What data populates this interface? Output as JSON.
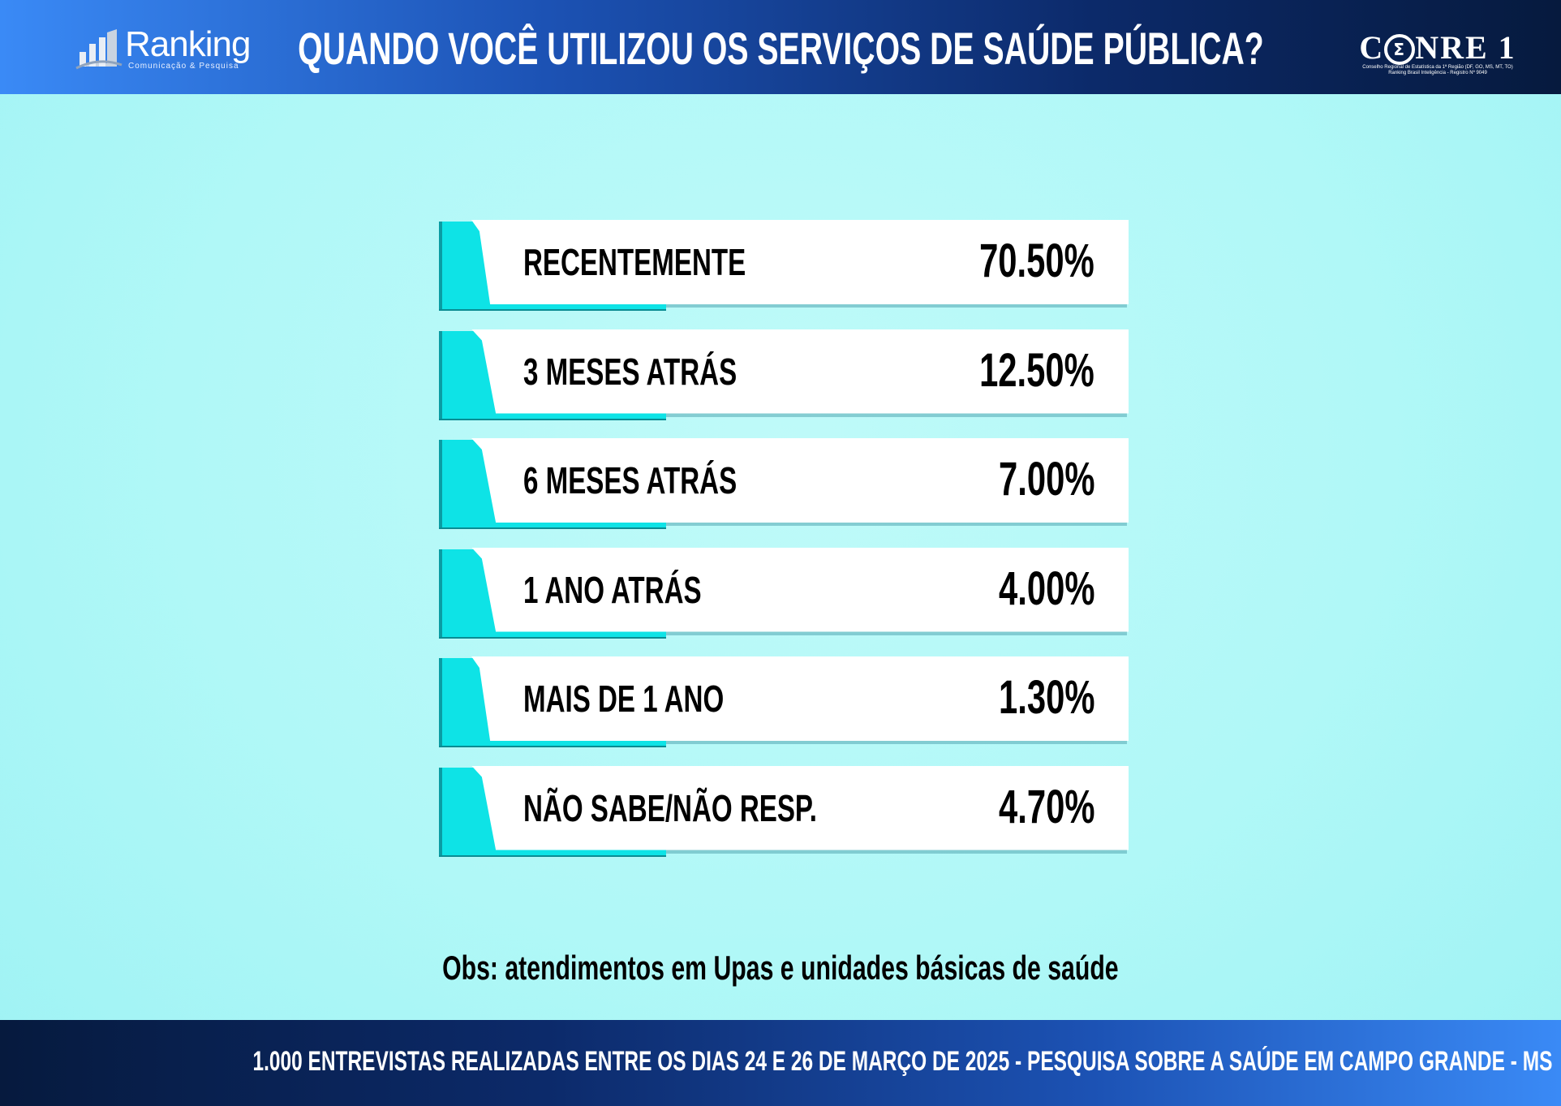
{
  "header": {
    "title": "QUANDO VOCÊ UTILIZOU OS SERVIÇOS DE SAÚDE PÚBLICA?",
    "logo_left": {
      "brand": "Ranking",
      "tagline": "Comunicação & Pesquisa",
      "icon": "bar-chart-logo-icon"
    },
    "logo_right": {
      "brand_start": "C",
      "brand_end": "NRE 1",
      "line1": "Conselho Regional de Estatística da 1ª Região (DF, GO, MS, MT, TO)",
      "line2": "Ranking Brasil Inteligência - Registro Nº 9049"
    }
  },
  "chart_data": {
    "type": "bar",
    "categories": [
      "RECENTEMENTE",
      "3 MESES ATRÁS",
      "6 MESES ATRÁS",
      "1 ANO ATRÁS",
      "MAIS DE 1 ANO",
      "NÃO SABE/NÃO RESP."
    ],
    "values": [
      70.5,
      12.5,
      7.0,
      4.0,
      1.3,
      4.7
    ],
    "value_labels": [
      "70.50%",
      "12.50%",
      "7.00%",
      "4.00%",
      "1.30%",
      "4.70%"
    ],
    "title": "QUANDO VOCÊ UTILIZOU OS SERVIÇOS DE SAÚDE PÚBLICA?",
    "unit": "%"
  },
  "note": "Obs: atendimentos em Upas e unidades básicas de saúde",
  "footer": "1.000 ENTREVISTAS REALIZADAS ENTRE OS DIAS 24 E 26 DE MARÇO DE 2025  - PESQUISA SOBRE A SAÚDE EM CAMPO GRANDE - MS",
  "colors": {
    "accent": "#0ee3e6",
    "header_start": "#3a8af6",
    "header_end": "#061a3e",
    "background": "#b0f8f7"
  }
}
